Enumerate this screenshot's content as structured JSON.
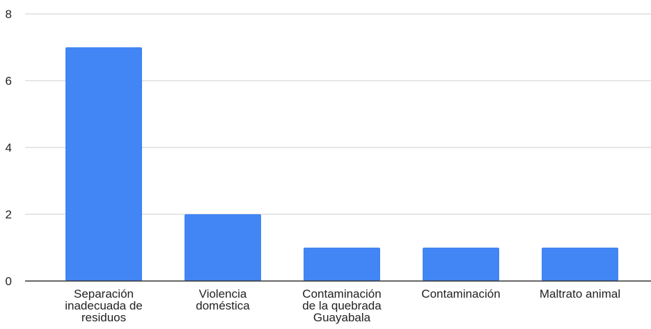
{
  "chart_data": {
    "type": "bar",
    "categories": [
      [
        "Separación",
        "inadecuada de",
        "residuos"
      ],
      [
        "Violencia",
        "doméstica"
      ],
      [
        "Contaminación",
        "de la quebrada",
        "Guayabala"
      ],
      [
        "Contaminación"
      ],
      [
        "Maltrato animal"
      ]
    ],
    "values": [
      7,
      2,
      1,
      1,
      1
    ],
    "ylim": [
      0,
      8
    ],
    "yticks": [
      "0",
      "2",
      "4",
      "6",
      "8"
    ],
    "ytick_values": [
      0,
      2,
      4,
      6,
      8
    ],
    "grid": true,
    "legend": "none",
    "title": "",
    "xlabel": "",
    "ylabel": ""
  },
  "colors": {
    "bar": "#4285f4",
    "grid": "#cccccc",
    "axis": "#333333",
    "text": "#222222"
  }
}
